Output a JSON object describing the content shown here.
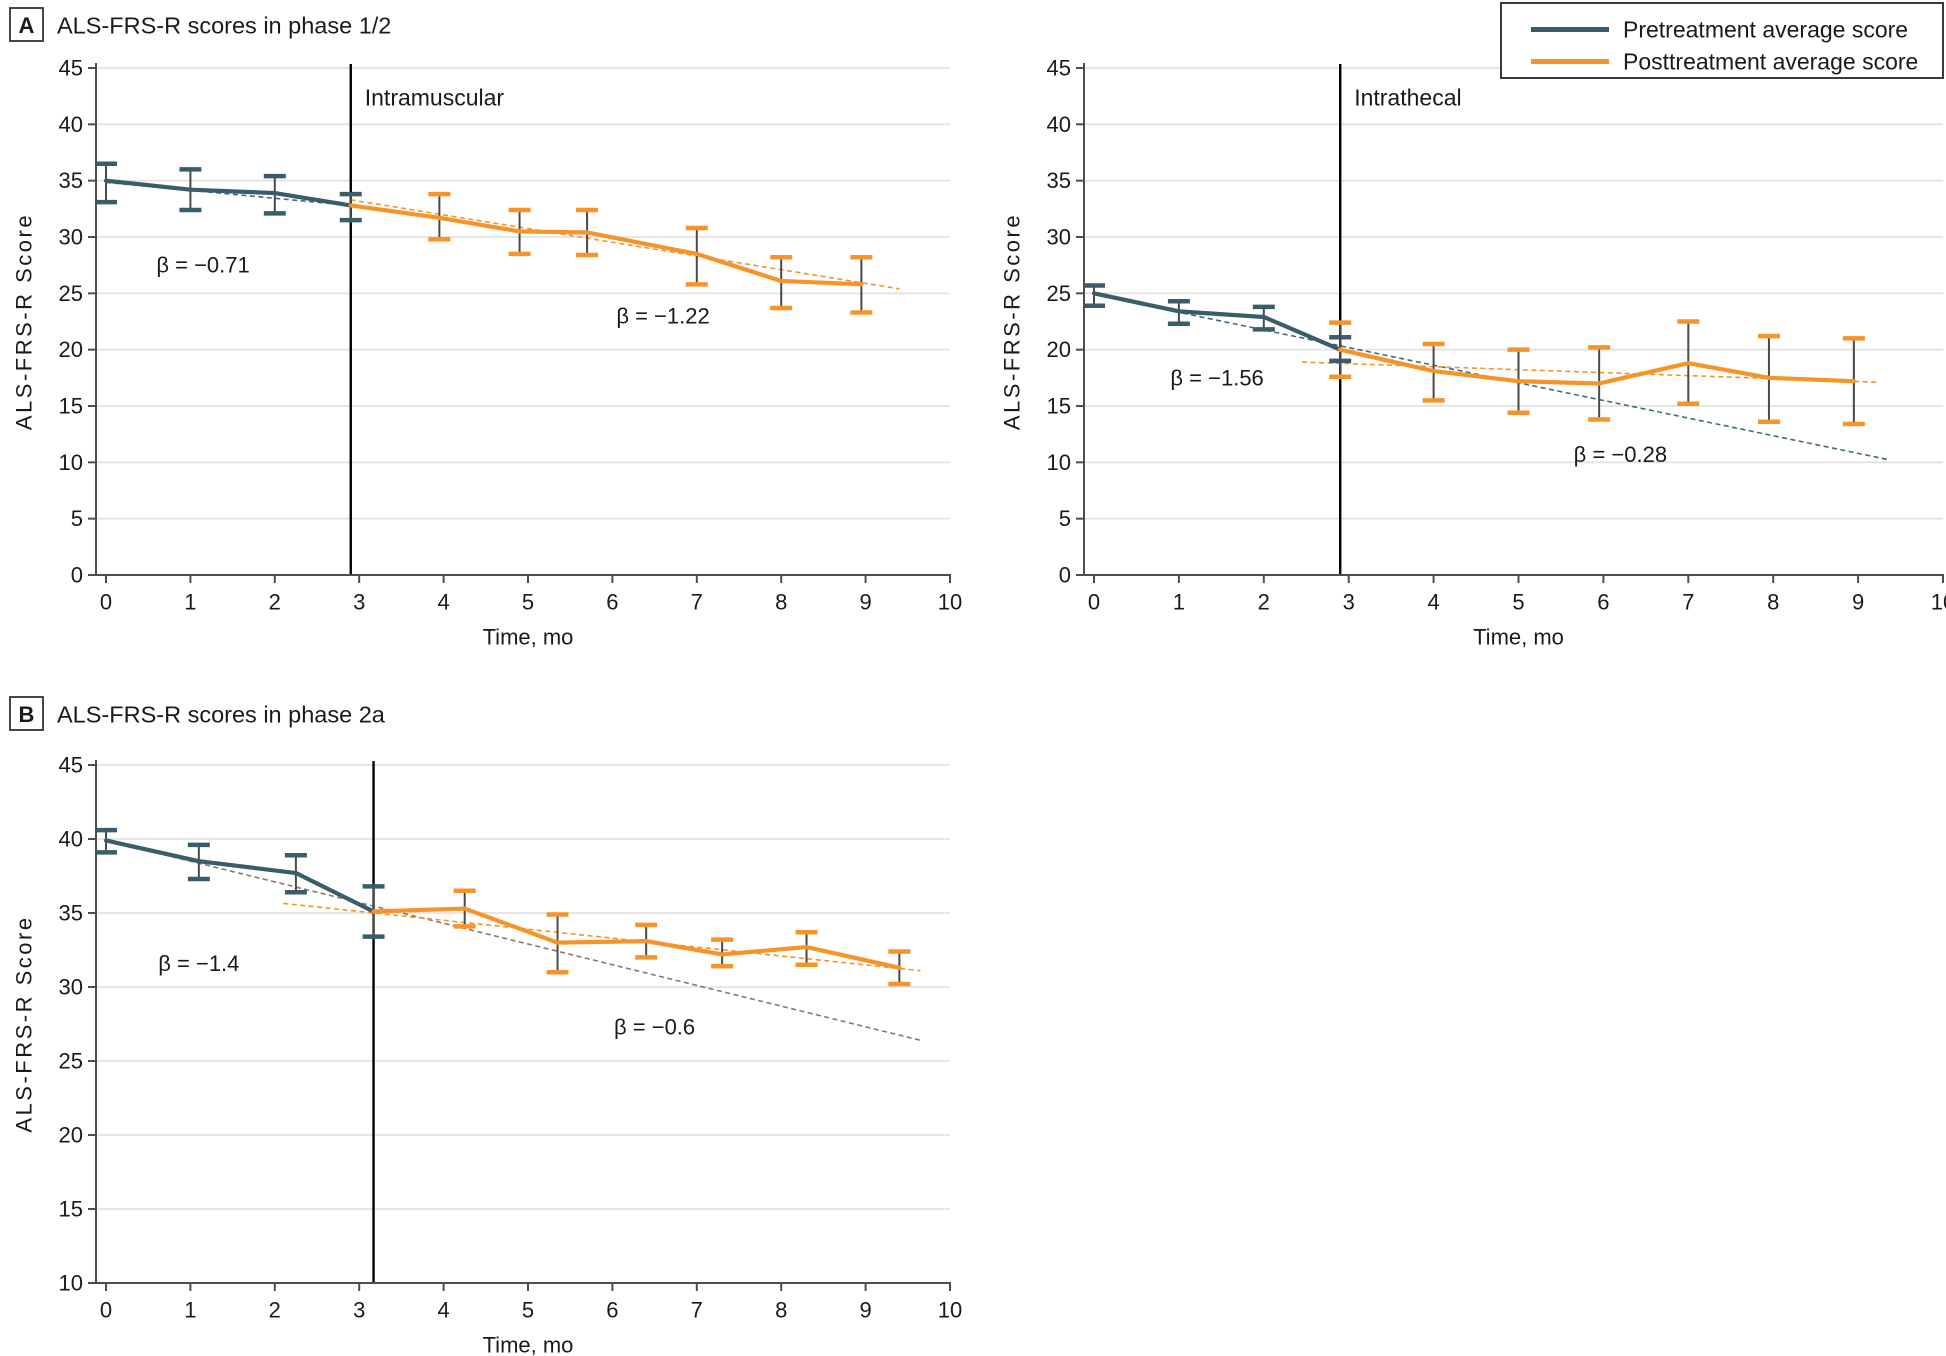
{
  "panel_a": {
    "label": "A",
    "title": "ALS-FRS-R scores in phase 1/2"
  },
  "panel_b": {
    "label": "B",
    "title": "ALS-FRS-R scores in phase 2a"
  },
  "legend": {
    "items": [
      {
        "label": "Pretreatment average score",
        "color": "#3A5D6B"
      },
      {
        "label": "Posttreatment average score",
        "color": "#F79429"
      }
    ]
  },
  "colors": {
    "pretreatment": "#3A5D6B",
    "posttreatment": "#F79429",
    "pre_trend_teal": "#416B7C",
    "pre_trend_brown": "#8B7668",
    "error_stem": "#4A4A4A",
    "grid": "#E3E3E3",
    "axis": "#4D4D4D",
    "vline": "#000000"
  },
  "chart_data": [
    {
      "type": "line",
      "panel": "A",
      "annotation": "Intramuscular",
      "xlabel": "Time, mo",
      "ylabel": "ALS-FRS-R Score",
      "xlim": [
        0,
        10
      ],
      "ylim": [
        0,
        45
      ],
      "xticks": [
        0,
        1,
        2,
        3,
        4,
        5,
        6,
        7,
        8,
        9,
        10
      ],
      "yticks": [
        0,
        5,
        10,
        15,
        20,
        25,
        30,
        35,
        40,
        45
      ],
      "grid": "horizontal",
      "treatment_line_x": 2.9,
      "series": [
        {
          "name": "Pretreatment average score",
          "color_key": "pretreatment",
          "x": [
            0,
            1,
            2,
            2.9
          ],
          "y": [
            35.0,
            34.2,
            33.9,
            32.8
          ],
          "err_lo": [
            33.1,
            32.4,
            32.1,
            31.5
          ],
          "err_hi": [
            36.5,
            36.0,
            35.4,
            33.8
          ],
          "beta_label": "β = −0.71",
          "beta_x": 1.15,
          "beta_y": 27.5,
          "trend": {
            "x1": 0,
            "y1": 34.85,
            "x2": 2.9,
            "y2": 32.8,
            "color_key": "pre_trend_teal"
          }
        },
        {
          "name": "Posttreatment average score",
          "color_key": "posttreatment",
          "x": [
            2.9,
            3.95,
            4.9,
            5.7,
            7.0,
            8.0,
            8.95
          ],
          "y": [
            32.8,
            31.7,
            30.5,
            30.4,
            28.5,
            26.1,
            25.8
          ],
          "err_lo": [
            null,
            29.8,
            28.5,
            28.4,
            25.8,
            23.7,
            23.3
          ],
          "err_hi": [
            null,
            33.8,
            32.4,
            32.4,
            30.8,
            28.2,
            28.2
          ],
          "beta_label": "β = −1.22",
          "beta_x": 6.6,
          "beta_y": 23.0,
          "trend": {
            "x1": 2.9,
            "y1": 33.3,
            "x2": 9.4,
            "y2": 25.4,
            "color_key": "posttreatment"
          }
        }
      ]
    },
    {
      "type": "line",
      "panel": "A",
      "annotation": "Intrathecal",
      "xlabel": "Time, mo",
      "ylabel": "ALS-FRS-R Score",
      "xlim": [
        0,
        10
      ],
      "ylim": [
        0,
        45
      ],
      "xticks": [
        0,
        1,
        2,
        3,
        4,
        5,
        6,
        7,
        8,
        9,
        10
      ],
      "yticks": [
        0,
        5,
        10,
        15,
        20,
        25,
        30,
        35,
        40,
        45
      ],
      "grid": "horizontal",
      "treatment_line_x": 2.9,
      "series": [
        {
          "name": "Pretreatment average score",
          "color_key": "pretreatment",
          "x": [
            0,
            1,
            2,
            2.9
          ],
          "y": [
            25.0,
            23.4,
            22.9,
            20.0
          ],
          "err_lo": [
            23.9,
            22.3,
            21.8,
            19.0
          ],
          "err_hi": [
            25.7,
            24.3,
            23.8,
            21.1
          ],
          "beta_label": "β = −1.56",
          "beta_x": 1.45,
          "beta_y": 17.5,
          "trend": {
            "x1": 0.85,
            "y1": 23.55,
            "x2": 9.35,
            "y2": 10.25,
            "color_key": "pre_trend_teal"
          }
        },
        {
          "name": "Posttreatment average score",
          "color_key": "posttreatment",
          "x": [
            2.9,
            4.0,
            5.0,
            5.95,
            7.0,
            7.95,
            8.95
          ],
          "y": [
            20.0,
            18.1,
            17.2,
            17.0,
            18.8,
            17.5,
            17.2
          ],
          "err_lo": [
            17.6,
            15.5,
            14.4,
            13.8,
            15.2,
            13.6,
            13.4
          ],
          "err_hi": [
            22.4,
            20.5,
            20.0,
            20.2,
            22.5,
            21.2,
            21.0
          ],
          "beta_label": "β = −0.28",
          "beta_x": 6.2,
          "beta_y": 10.7,
          "trend": {
            "x1": 2.45,
            "y1": 18.9,
            "x2": 9.25,
            "y2": 17.1,
            "color_key": "posttreatment"
          }
        }
      ]
    },
    {
      "type": "line",
      "panel": "B",
      "xlabel": "Time, mo",
      "ylabel": "ALS-FRS-R Score",
      "xlim": [
        0,
        10
      ],
      "ylim": [
        10,
        45
      ],
      "xticks": [
        0,
        1,
        2,
        3,
        4,
        5,
        6,
        7,
        8,
        9,
        10
      ],
      "yticks": [
        10,
        15,
        20,
        25,
        30,
        35,
        40,
        45
      ],
      "grid": "horizontal",
      "treatment_line_x": 3.17,
      "series": [
        {
          "name": "Pretreatment average score",
          "color_key": "pretreatment",
          "x": [
            0,
            1.1,
            2.25,
            3.17
          ],
          "y": [
            39.9,
            38.5,
            37.7,
            35.1
          ],
          "err_lo": [
            39.1,
            37.3,
            36.4,
            33.4
          ],
          "err_hi": [
            40.6,
            39.6,
            38.9,
            36.8
          ],
          "beta_label": "β = −1.4",
          "beta_x": 1.1,
          "beta_y": 31.6,
          "trend": {
            "x1": 0,
            "y1": 39.9,
            "x2": 9.65,
            "y2": 26.4,
            "color_key": "pre_trend_brown"
          }
        },
        {
          "name": "Posttreatment average score",
          "color_key": "posttreatment",
          "x": [
            3.17,
            4.25,
            5.35,
            6.4,
            7.3,
            8.3,
            9.4
          ],
          "y": [
            35.1,
            35.3,
            33.0,
            33.1,
            32.2,
            32.7,
            31.3
          ],
          "err_lo": [
            null,
            34.1,
            31.0,
            32.0,
            31.4,
            31.5,
            30.2
          ],
          "err_hi": [
            null,
            36.5,
            34.9,
            34.2,
            33.2,
            33.7,
            32.4
          ],
          "beta_label": "β = −0.6",
          "beta_x": 6.5,
          "beta_y": 27.3,
          "trend": {
            "x1": 2.1,
            "y1": 35.65,
            "x2": 9.65,
            "y2": 31.1,
            "color_key": "posttreatment"
          }
        }
      ]
    }
  ]
}
